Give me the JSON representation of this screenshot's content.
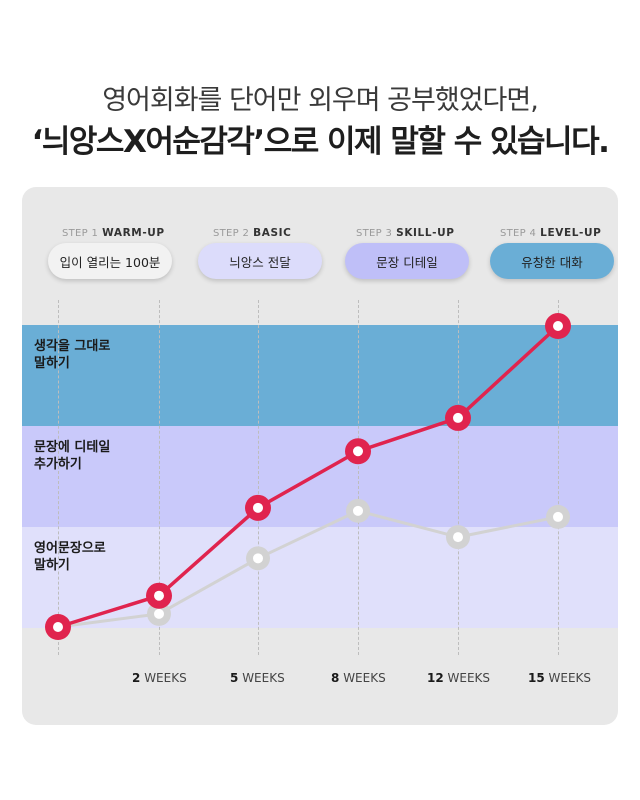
{
  "headline": {
    "line1": "영어회화를 단어만 외우며 공부했었다면,",
    "line2": "‘늬앙스X어순감각’으로 이제 말할 수 있습니다."
  },
  "steps": [
    {
      "step": "STEP 1",
      "name": "WARM-UP",
      "pill": "입이 열리는 100분",
      "pill_color": "#f2f2f2"
    },
    {
      "step": "STEP 2",
      "name": "BASIC",
      "pill": "늬앙스 전달",
      "pill_color": "#dcdcfb"
    },
    {
      "step": "STEP 3",
      "name": "SKILL-UP",
      "pill": "문장 디테일",
      "pill_color": "#bfbff8"
    },
    {
      "step": "STEP 4",
      "name": "LEVEL-UP",
      "pill": "유창한 대화",
      "pill_color": "#6aaed6"
    }
  ],
  "bands": [
    {
      "label_line1": "생각을 그대로",
      "label_line2": "말하기",
      "color": "#6aaed6"
    },
    {
      "label_line1": "문장에 디테일",
      "label_line2": "추가하기",
      "color": "#c9c9fa"
    },
    {
      "label_line1": "영어문장으로",
      "label_line2": "말하기",
      "color": "#e0e0fb"
    }
  ],
  "chart_data": {
    "type": "line",
    "x": [
      0,
      2,
      5,
      8,
      12,
      15
    ],
    "x_labels": [
      {
        "num": "",
        "unit": ""
      },
      {
        "num": "2",
        "unit": "WEEKS"
      },
      {
        "num": "5",
        "unit": "WEEKS"
      },
      {
        "num": "8",
        "unit": "WEEKS"
      },
      {
        "num": "12",
        "unit": "WEEKS"
      },
      {
        "num": "15",
        "unit": "WEEKS"
      }
    ],
    "ylim": [
      0,
      3
    ],
    "series": [
      {
        "color": "#e0244e",
        "values": [
          0,
          0.31,
          1.18,
          1.74,
          2.07,
          2.98
        ]
      },
      {
        "color": "#d2d2d2",
        "values": [
          0,
          0.13,
          0.68,
          1.15,
          0.89,
          1.09
        ]
      }
    ]
  }
}
